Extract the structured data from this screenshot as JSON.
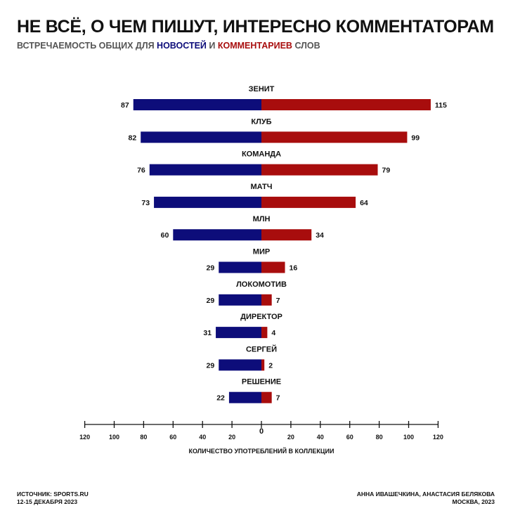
{
  "title": "НЕ ВСЁ, О ЧЕМ ПИШУТ, ИНТЕРЕСНО КОММЕНТАТОРАМ",
  "subtitle": {
    "part1": "ВСТРЕЧАЕМОСТЬ ОБЩИХ ДЛЯ ",
    "news": "НОВОСТЕЙ",
    "part2": " И ",
    "comments": "КОММЕНТАРИЕВ",
    "part3": " СЛОВ"
  },
  "colors": {
    "news": "#0d0d7a",
    "comments": "#a80d0d",
    "axis": "#111111"
  },
  "chart_data": {
    "type": "bar",
    "orientation": "horizontal-diverging",
    "categories": [
      "ЗЕНИТ",
      "КЛУБ",
      "КОМАНДА",
      "МАТЧ",
      "МЛН",
      "МИР",
      "ЛОКОМОТИВ",
      "ДИРЕКТОР",
      "СЕРГЕЙ",
      "РЕШЕНИЕ"
    ],
    "series": [
      {
        "values": [
          87,
          82,
          76,
          73,
          60,
          29,
          29,
          31,
          29,
          22
        ]
      },
      {
        "values": [
          115,
          99,
          79,
          64,
          34,
          16,
          7,
          4,
          2,
          7
        ]
      }
    ],
    "xlabel": "КОЛИЧЕСТВО УПОТРЕБЛЕНИЙ В КОЛЛЕКЦИИ",
    "xlim": [
      -120,
      120
    ],
    "ticks": [
      -120,
      -100,
      -80,
      -60,
      -40,
      -20,
      0,
      20,
      40,
      60,
      80,
      100,
      120
    ],
    "tick_labels": [
      "120",
      "100",
      "80",
      "60",
      "40",
      "20",
      "0",
      "20",
      "40",
      "60",
      "80",
      "100",
      "120"
    ],
    "grid": false,
    "legend": "none"
  },
  "footer": {
    "source": "ИСТОЧНИК: SPORTS.RU",
    "dates": "12-15 ДЕКАБРЯ 2023",
    "authors": "АННА ИВАШЕЧКИНА, АНАСТАСИЯ БЕЛЯКОВА",
    "city": "МОСКВА, 2023"
  }
}
